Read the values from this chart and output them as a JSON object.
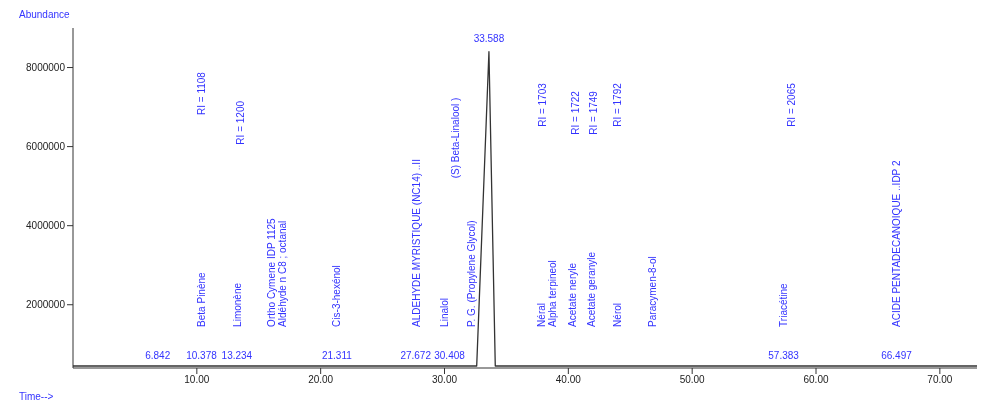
{
  "chart_data": {
    "type": "line",
    "xlabel": "Time-->",
    "ylabel": "Abundance",
    "x": [
      0,
      32.6,
      33.588,
      34.1,
      73
    ],
    "series": [
      {
        "color": "#333333",
        "values": [
          450000,
          450000,
          8400000,
          450000,
          450000
        ]
      }
    ],
    "xlim": [
      0,
      73
    ],
    "xticks": [
      {
        "value": 10,
        "label": "10.00"
      },
      {
        "value": 20,
        "label": "20.00"
      },
      {
        "value": 30,
        "label": "30.00"
      },
      {
        "value": 40,
        "label": "40.00"
      },
      {
        "value": 50,
        "label": "50.00"
      },
      {
        "value": 60,
        "label": "60.00"
      },
      {
        "value": 70,
        "label": "70.00"
      }
    ],
    "ylim": [
      400000,
      9000000
    ],
    "yticks": [
      2000000,
      4000000,
      6000000,
      8000000
    ],
    "grid": false,
    "marker": "none",
    "line_style": "solid",
    "annotations": [
      "6.842",
      "10.378",
      "13.234",
      "21.311",
      "27.672",
      "30.408",
      "57.383",
      "66.497",
      "33.588",
      "Beta Pinène",
      "Limonène",
      "Ortho Cymene IDP 1125",
      "Aldéhyde n C8 ; octanal",
      "Cis-3-hexénol",
      "ALDEHYDE MYRISTIQUE (NC14) ..II",
      "Linalol",
      "(S) Beta-Linalool )",
      "P. G. (Propylene Glycol)",
      "Néral",
      "Alpha terpineol",
      "Acetate neryle",
      "Nérol",
      "Paracymen-8-ol",
      "Triacétine",
      "ACIDE PENTADECANOIQUE ..IDP 2",
      "RI = 1108",
      "RI = 1200",
      "RI = 1703",
      "RI = 1722",
      "RI = 1749",
      "RI = 1792",
      "RI = 2065",
      "Acetate geranyle"
    ]
  }
}
